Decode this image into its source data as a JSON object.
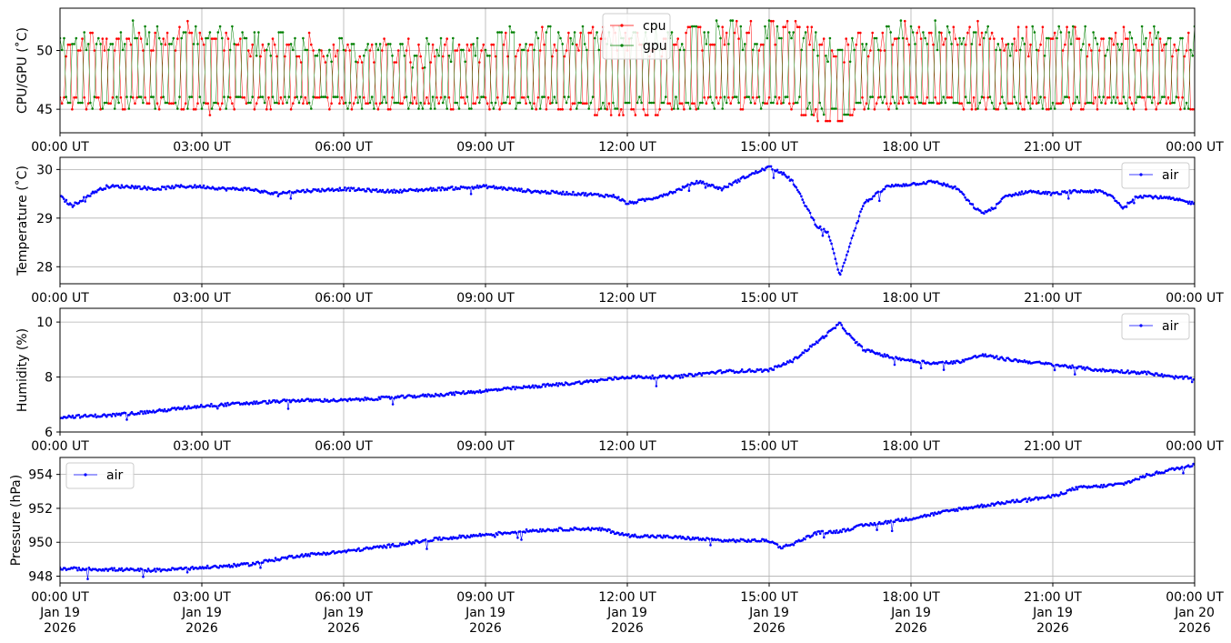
{
  "chart_data": [
    {
      "type": "line",
      "ylabel": "CPU/GPU (˚C)",
      "ylim": [
        43.0,
        53.6
      ],
      "yticks": [
        45,
        50
      ],
      "xlim": [
        "2026-01-19T00:00",
        "2026-01-20T00:00"
      ],
      "xtick_labels": [
        "00:00 UT",
        "03:00 UT",
        "06:00 UT",
        "09:00 UT",
        "12:00 UT",
        "15:00 UT",
        "18:00 UT",
        "21:00 UT",
        "00:00 UT"
      ],
      "grid": true,
      "legend": "top-center",
      "series": [
        {
          "name": "cpu",
          "color": "#ff0000",
          "x": [
            "00:00",
            "01:00",
            "02:00",
            "03:00",
            "04:00",
            "05:00",
            "06:00",
            "07:00",
            "08:00",
            "09:00",
            "10:00",
            "11:00",
            "12:00",
            "13:00",
            "14:00",
            "15:00",
            "16:00",
            "16:30",
            "17:00",
            "18:00",
            "19:00",
            "20:00",
            "21:00",
            "22:00",
            "23:00",
            "24:00"
          ],
          "low": [
            45,
            45,
            45,
            44.5,
            45,
            45,
            45,
            45,
            45,
            45,
            45,
            44.5,
            44,
            44.5,
            45,
            45,
            44,
            43.5,
            45,
            45,
            45,
            44.5,
            45,
            45,
            45,
            45
          ],
          "high": [
            52,
            52,
            52,
            52.5,
            52,
            51.5,
            51,
            51,
            51,
            51.5,
            52,
            52,
            52,
            52,
            52.5,
            52.5,
            52.5,
            51,
            52,
            52.5,
            52.5,
            52,
            52,
            52,
            52,
            52
          ]
        },
        {
          "name": "gpu",
          "color": "#008000",
          "x": [
            "00:00",
            "01:00",
            "02:00",
            "03:00",
            "04:00",
            "05:00",
            "06:00",
            "07:00",
            "08:00",
            "09:00",
            "10:00",
            "11:00",
            "12:00",
            "13:00",
            "14:00",
            "15:00",
            "16:00",
            "16:30",
            "17:00",
            "18:00",
            "19:00",
            "20:00",
            "21:00",
            "22:00",
            "23:00",
            "24:00"
          ],
          "low": [
            45,
            45,
            45,
            45,
            45,
            45,
            45,
            45,
            45,
            45,
            45,
            45,
            44.5,
            45,
            45,
            45,
            44.5,
            44,
            45,
            45,
            45,
            45,
            45,
            45,
            45,
            45
          ],
          "high": [
            52,
            52.5,
            53,
            52.5,
            52,
            51.5,
            51,
            51,
            51,
            51.5,
            52,
            52,
            52,
            52,
            52.5,
            52.5,
            52,
            51,
            52,
            52.5,
            52.5,
            52,
            52,
            52,
            52,
            52
          ]
        }
      ]
    },
    {
      "type": "line",
      "ylabel": "Temperature (˚C)",
      "ylim": [
        27.65,
        30.25
      ],
      "yticks": [
        28,
        29,
        30
      ],
      "xlim": [
        "2026-01-19T00:00",
        "2026-01-20T00:00"
      ],
      "xtick_labels": [
        "00:00 UT",
        "03:00 UT",
        "06:00 UT",
        "09:00 UT",
        "12:00 UT",
        "15:00 UT",
        "18:00 UT",
        "21:00 UT",
        "00:00 UT"
      ],
      "grid": true,
      "legend": "top-right",
      "series": [
        {
          "name": "air",
          "color": "#0000ff",
          "x": [
            "00:00",
            "00:15",
            "00:30",
            "00:45",
            "01:00",
            "01:30",
            "02:00",
            "02:30",
            "03:00",
            "03:30",
            "04:00",
            "04:30",
            "05:00",
            "06:00",
            "07:00",
            "08:00",
            "09:00",
            "10:00",
            "11:00",
            "11:45",
            "12:00",
            "12:30",
            "13:00",
            "13:30",
            "14:00",
            "14:30",
            "15:00",
            "15:15",
            "15:30",
            "15:45",
            "16:00",
            "16:15",
            "16:30",
            "16:45",
            "17:00",
            "17:30",
            "18:00",
            "18:30",
            "19:00",
            "19:15",
            "19:30",
            "19:45",
            "20:00",
            "20:30",
            "21:00",
            "21:30",
            "22:00",
            "22:15",
            "22:30",
            "22:45",
            "23:00",
            "23:30",
            "24:00"
          ],
          "y": [
            29.45,
            29.25,
            29.4,
            29.55,
            29.65,
            29.65,
            29.6,
            29.65,
            29.65,
            29.6,
            29.6,
            29.5,
            29.55,
            29.6,
            29.55,
            29.6,
            29.65,
            29.55,
            29.5,
            29.45,
            29.3,
            29.4,
            29.55,
            29.75,
            29.6,
            29.85,
            30.05,
            29.95,
            29.75,
            29.3,
            28.85,
            28.7,
            27.8,
            28.6,
            29.3,
            29.65,
            29.7,
            29.75,
            29.6,
            29.3,
            29.1,
            29.2,
            29.45,
            29.55,
            29.5,
            29.55,
            29.55,
            29.45,
            29.2,
            29.45,
            29.45,
            29.4,
            29.3
          ]
        }
      ]
    },
    {
      "type": "line",
      "ylabel": "Humidity (%)",
      "ylim": [
        6.0,
        10.5
      ],
      "yticks": [
        6,
        8,
        10
      ],
      "xlim": [
        "2026-01-19T00:00",
        "2026-01-20T00:00"
      ],
      "xtick_labels": [
        "00:00 UT",
        "03:00 UT",
        "06:00 UT",
        "09:00 UT",
        "12:00 UT",
        "15:00 UT",
        "18:00 UT",
        "21:00 UT",
        "00:00 UT"
      ],
      "grid": true,
      "legend": "top-right",
      "series": [
        {
          "name": "air",
          "color": "#0000ff",
          "x": [
            "00:00",
            "01:00",
            "02:00",
            "03:00",
            "04:00",
            "05:00",
            "06:00",
            "07:00",
            "08:00",
            "09:00",
            "10:00",
            "11:00",
            "12:00",
            "13:00",
            "14:00",
            "15:00",
            "15:30",
            "16:00",
            "16:30",
            "16:45",
            "17:00",
            "17:30",
            "18:00",
            "18:30",
            "19:00",
            "19:30",
            "20:00",
            "21:00",
            "22:00",
            "23:00",
            "23:30",
            "24:00"
          ],
          "y": [
            6.55,
            6.6,
            6.75,
            6.95,
            7.05,
            7.15,
            7.15,
            7.25,
            7.35,
            7.5,
            7.65,
            7.8,
            8.0,
            8.0,
            8.2,
            8.25,
            8.6,
            9.25,
            9.95,
            9.4,
            9.0,
            8.75,
            8.6,
            8.5,
            8.55,
            8.8,
            8.65,
            8.45,
            8.25,
            8.15,
            8.0,
            7.95
          ]
        }
      ]
    },
    {
      "type": "line",
      "ylabel": "Pressure (hPa)",
      "ylim": [
        947.6,
        955.0
      ],
      "yticks": [
        948,
        950,
        952,
        954
      ],
      "xlim": [
        "2026-01-19T00:00",
        "2026-01-20T00:00"
      ],
      "xtick_labels": [
        "00:00 UT\nJan 19\n2026",
        "03:00 UT\nJan 19\n2026",
        "06:00 UT\nJan 19\n2026",
        "09:00 UT\nJan 19\n2026",
        "12:00 UT\nJan 19\n2026",
        "15:00 UT\nJan 19\n2026",
        "18:00 UT\nJan 19\n2026",
        "21:00 UT\nJan 19\n2026",
        "00:00 UT\nJan 20\n2026"
      ],
      "grid": true,
      "legend": "top-left",
      "series": [
        {
          "name": "air",
          "color": "#0000ff",
          "x": [
            "00:00",
            "01:00",
            "02:00",
            "03:00",
            "04:00",
            "05:00",
            "06:00",
            "07:00",
            "08:00",
            "09:00",
            "10:00",
            "11:00",
            "11:30",
            "12:00",
            "13:00",
            "14:00",
            "15:00",
            "15:15",
            "15:30",
            "16:00",
            "16:30",
            "17:00",
            "18:00",
            "19:00",
            "20:00",
            "21:00",
            "21:30",
            "22:00",
            "22:30",
            "23:00",
            "24:00"
          ],
          "y": [
            948.45,
            948.4,
            948.35,
            948.5,
            948.7,
            949.2,
            949.45,
            949.8,
            950.2,
            950.45,
            950.7,
            950.8,
            950.75,
            950.4,
            950.3,
            950.1,
            950.1,
            949.7,
            949.9,
            950.55,
            950.65,
            951.0,
            951.4,
            951.95,
            952.35,
            952.7,
            953.2,
            953.3,
            953.45,
            953.95,
            954.6
          ]
        }
      ]
    }
  ]
}
